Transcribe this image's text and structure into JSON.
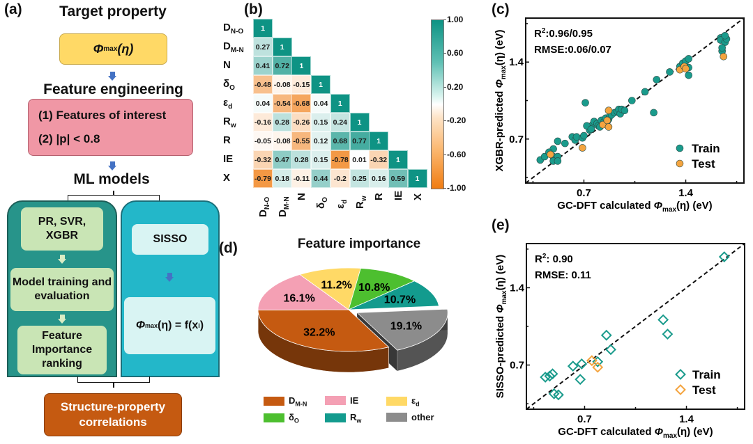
{
  "panels": {
    "a": "(a)",
    "b": "(b)",
    "c": "(c)",
    "d": "(d)",
    "e": "(e)"
  },
  "flowchart": {
    "target_title": "Target property",
    "target_box": {
      "main": "Φ",
      "sub": "max",
      "tail": "(η)"
    },
    "feature_title": "Feature engineering",
    "feature_items": [
      "(1) Features of interest",
      "(2) |p| < 0.8"
    ],
    "ml_title": "ML models",
    "left_column": [
      "PR, SVR, XGBR",
      "Model training and evaluation",
      "Feature Importance ranking"
    ],
    "right_column": {
      "top": "SISSO",
      "formula_main": "Φ",
      "formula_sub": "max",
      "formula_tail": "(η) = f(x",
      "formula_idx": "i",
      "formula_end": ")"
    },
    "result_box": "Structure-property correlations",
    "colors": {
      "target": "#ffd966",
      "feature": "#f097a5",
      "left_col": "#27948a",
      "right_col": "#23b7c9",
      "left_inner": "#c9e5b5",
      "right_inner": "#d9f4f3",
      "result": "#c55a11",
      "arrow": "#4472c4"
    }
  },
  "chart_data": [
    {
      "id": "b",
      "type": "heatmap",
      "title": "",
      "labels": [
        {
          "base": "D",
          "sub": "N-O"
        },
        {
          "base": "D",
          "sub": "M-N"
        },
        {
          "base": "N",
          "sub": ""
        },
        {
          "base": "δ",
          "sub": "O"
        },
        {
          "base": "ε",
          "sub": "d"
        },
        {
          "base": "R",
          "sub": "w"
        },
        {
          "base": "R",
          "sub": ""
        },
        {
          "base": "IE",
          "sub": ""
        },
        {
          "base": "X",
          "sub": ""
        }
      ],
      "matrix_lower": [
        [
          1
        ],
        [
          0.27,
          1
        ],
        [
          0.41,
          0.72,
          1
        ],
        [
          -0.48,
          -0.08,
          -0.15,
          1
        ],
        [
          0.04,
          -0.54,
          -0.68,
          0.04,
          1
        ],
        [
          -0.16,
          0.28,
          -0.26,
          0.15,
          0.24,
          1
        ],
        [
          -0.05,
          -0.08,
          -0.55,
          0.12,
          0.68,
          0.77,
          1
        ],
        [
          -0.32,
          0.47,
          0.28,
          0.15,
          -0.78,
          0.01,
          -0.32,
          1
        ],
        [
          -0.79,
          0.18,
          -0.11,
          0.44,
          -0.2,
          0.25,
          0.16,
          0.59,
          1
        ]
      ],
      "colorbar": {
        "ticks": [
          "1.00",
          "0.60",
          "0.20",
          "-0.20",
          "-0.60",
          "-1.00"
        ],
        "range": [
          -1,
          1
        ],
        "pos_color": "#0e9384",
        "neg_color": "#f07c12",
        "mid_color": "#ffffff"
      }
    },
    {
      "id": "c",
      "type": "scatter",
      "xlabel": {
        "pre": "GC-DFT calculated ",
        "sym": "Φ",
        "sub": "max",
        "post": "(η) (eV)"
      },
      "ylabel": {
        "pre": "XGBR-predicted ",
        "sym": "Φ",
        "sub": "max",
        "post": "(η) (eV)"
      },
      "xlim": [
        0.3,
        1.8
      ],
      "ylim": [
        0.3,
        1.8
      ],
      "xticks": [
        "0.7",
        "1.4"
      ],
      "yticks": [
        "0.7",
        "1.4"
      ],
      "annotation": {
        "r2_label": "R",
        "r2_sup": "2",
        "r2_value": ":0.96/0.95",
        "rmse": "RMSE:0.06/0.07"
      },
      "legend": [
        "Train",
        "Test"
      ],
      "legend_position": "bottom-right",
      "series": [
        {
          "name": "Train",
          "color": "#1a9b8c",
          "marker": "circle",
          "points": [
            [
              0.4,
              0.51
            ],
            [
              0.43,
              0.54
            ],
            [
              0.49,
              0.61
            ],
            [
              0.52,
              0.68
            ],
            [
              0.49,
              0.54
            ],
            [
              0.52,
              0.54
            ],
            [
              0.49,
              0.5
            ],
            [
              0.52,
              0.5
            ],
            [
              0.46,
              0.58
            ],
            [
              0.57,
              0.66
            ],
            [
              0.62,
              0.72
            ],
            [
              0.64,
              0.69
            ],
            [
              0.65,
              0.72
            ],
            [
              0.69,
              0.71
            ],
            [
              0.7,
              0.73
            ],
            [
              0.74,
              0.78
            ],
            [
              0.76,
              0.83
            ],
            [
              0.77,
              0.86
            ],
            [
              0.79,
              0.84
            ],
            [
              0.8,
              0.82
            ],
            [
              0.82,
              0.87
            ],
            [
              0.84,
              0.86
            ],
            [
              0.85,
              0.89
            ],
            [
              0.86,
              0.86
            ],
            [
              0.87,
              0.88
            ],
            [
              0.88,
              0.91
            ],
            [
              0.89,
              0.92
            ],
            [
              0.91,
              0.94
            ],
            [
              0.93,
              0.95
            ],
            [
              0.94,
              0.97
            ],
            [
              0.95,
              0.93
            ],
            [
              0.96,
              0.97
            ],
            [
              0.98,
              0.96
            ],
            [
              0.71,
              1.03
            ],
            [
              0.72,
              0.82
            ],
            [
              0.75,
              0.79
            ],
            [
              0.81,
              0.81
            ],
            [
              1.03,
              1.05
            ],
            [
              1.12,
              1.13
            ],
            [
              1.2,
              1.24
            ],
            [
              1.18,
              0.94
            ],
            [
              1.29,
              1.31
            ],
            [
              1.36,
              1.36
            ],
            [
              1.38,
              1.39
            ],
            [
              1.4,
              1.41
            ],
            [
              1.42,
              1.43
            ],
            [
              1.42,
              1.35
            ],
            [
              1.42,
              1.28
            ],
            [
              1.64,
              1.62
            ],
            [
              1.64,
              1.6
            ],
            [
              1.67,
              1.58
            ],
            [
              1.68,
              1.61
            ],
            [
              1.67,
              1.64
            ],
            [
              1.65,
              1.5
            ],
            [
              1.65,
              1.53
            ]
          ]
        },
        {
          "name": "Test",
          "color": "#f4a43f",
          "marker": "circle",
          "points": [
            [
              0.47,
              0.56
            ],
            [
              0.69,
              0.62
            ],
            [
              0.83,
              0.83
            ],
            [
              0.86,
              0.87
            ],
            [
              0.87,
              0.81
            ],
            [
              0.87,
              0.96
            ],
            [
              1.36,
              1.33
            ],
            [
              1.39,
              1.36
            ],
            [
              1.4,
              1.34
            ],
            [
              1.66,
              1.45
            ]
          ]
        }
      ],
      "reference_line": "y = x (dashed)"
    },
    {
      "id": "d",
      "type": "pie",
      "title": "Feature importance",
      "slices": [
        {
          "label": "D",
          "sub": "M-N",
          "value": 32.2,
          "text": "32.2%",
          "color": "#c55a11"
        },
        {
          "label": "IE",
          "sub": "",
          "value": 16.1,
          "text": "16.1%",
          "color": "#f4a0b4"
        },
        {
          "label": "ε",
          "sub": "d",
          "value": 11.2,
          "text": "11.2%",
          "color": "#ffd966"
        },
        {
          "label": "δ",
          "sub": "O",
          "value": 10.8,
          "text": "10.8%",
          "color": "#4dbf2f"
        },
        {
          "label": "R",
          "sub": "w",
          "value": 10.7,
          "text": "10.7%",
          "color": "#139b8e"
        },
        {
          "label": "other",
          "sub": "",
          "value": 19.1,
          "text": "19.1%",
          "color": "#8c8c8c",
          "exploded": true
        }
      ],
      "legend_position": "bottom"
    },
    {
      "id": "e",
      "type": "scatter",
      "xlabel": {
        "pre": "GC-DFT calculated ",
        "sym": "Φ",
        "sub": "max",
        "post": "(η) (eV)"
      },
      "ylabel": {
        "pre": "SISSO-predicted ",
        "sym": "Φ",
        "sub": "max",
        "post": "(η) (eV)"
      },
      "xlim": [
        0.3,
        1.8
      ],
      "ylim": [
        0.3,
        1.8
      ],
      "xticks": [
        "0.7",
        "1.4"
      ],
      "yticks": [
        "0.7",
        "1.4"
      ],
      "annotation": {
        "r2_label": "R",
        "r2_sup": "2",
        "r2_value": ": 0.90",
        "rmse": "RMSE: 0.11"
      },
      "legend": [
        "Train",
        "Test"
      ],
      "legend_position": "bottom-right",
      "series": [
        {
          "name": "Train",
          "color": "#1a9b8c",
          "marker": "diamond-open",
          "points": [
            [
              0.43,
              0.59
            ],
            [
              0.46,
              0.6
            ],
            [
              0.48,
              0.62
            ],
            [
              0.62,
              0.69
            ],
            [
              0.68,
              0.71
            ],
            [
              0.67,
              0.57
            ],
            [
              0.49,
              0.44
            ],
            [
              0.52,
              0.43
            ],
            [
              0.79,
              0.73
            ],
            [
              0.85,
              0.97
            ],
            [
              0.88,
              0.84
            ],
            [
              1.24,
              1.11
            ],
            [
              1.27,
              0.98
            ],
            [
              1.66,
              1.68
            ]
          ]
        },
        {
          "name": "Test",
          "color": "#f4a43f",
          "marker": "diamond-open",
          "points": [
            [
              0.75,
              0.74
            ],
            [
              0.79,
              0.68
            ]
          ]
        }
      ],
      "reference_line": "y = x (dashed)"
    }
  ]
}
